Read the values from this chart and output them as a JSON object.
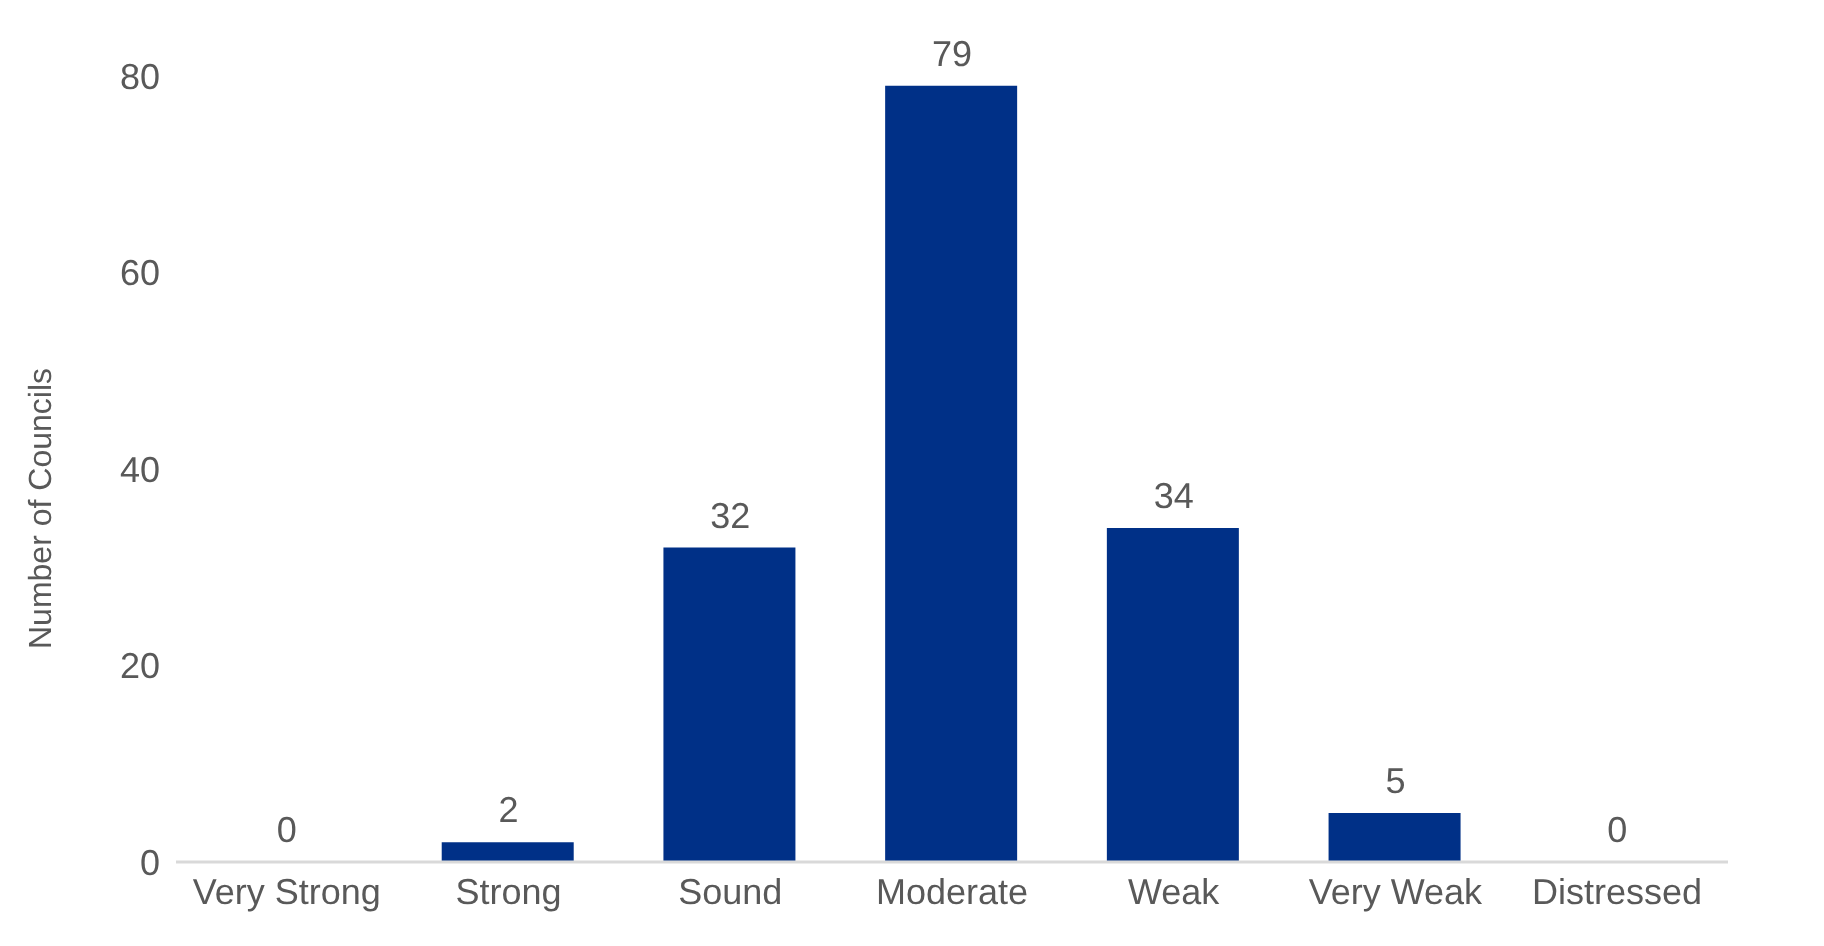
{
  "chart_data": {
    "type": "bar",
    "ylabel": "Number of Councils",
    "categories": [
      "Very Strong",
      "Strong",
      "Sound",
      "Moderate",
      "Weak",
      "Very Weak",
      "Distressed"
    ],
    "values": [
      0,
      2,
      32,
      79,
      34,
      5,
      0
    ],
    "color": "#003087",
    "ylim": [
      0,
      80
    ],
    "yticks": [
      0,
      20,
      40,
      60,
      80
    ],
    "grid": false,
    "data_labels": true
  }
}
